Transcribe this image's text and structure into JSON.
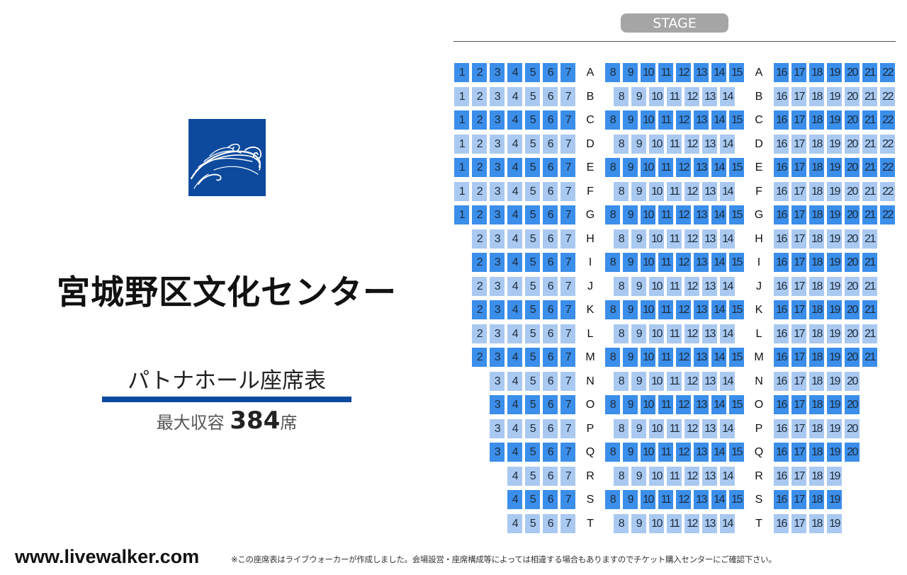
{
  "venue_name": "宮城野区文化センター",
  "hall_title": "パトナホール座席表",
  "capacity": {
    "label": "最大収容",
    "value": "384",
    "unit": "席"
  },
  "stage_label": "STAGE",
  "site_url": "www.livewalker.com",
  "footnote": "※この座席表はライブウォーカーが作成しました。会場設営・座席構成等によっては相違する場合もありますのでチケット購入センターにご確認下さい。",
  "colors": {
    "brand_blue": "#0d4a9e",
    "seat_dark": "#3b8eea",
    "seat_light": "#aac9f1",
    "stage_badge": "#a5a5a5"
  },
  "logo_icon": "swirl-logo-icon",
  "seating": {
    "rows": [
      {
        "label": "A",
        "left": [
          1,
          2,
          3,
          4,
          5,
          6,
          7
        ],
        "center": [
          8,
          9,
          10,
          11,
          12,
          13,
          14,
          15
        ],
        "right": [
          16,
          17,
          18,
          19,
          20,
          21,
          22
        ]
      },
      {
        "label": "B",
        "left": [
          1,
          2,
          3,
          4,
          5,
          6,
          7
        ],
        "center": [
          8,
          9,
          10,
          11,
          12,
          13,
          14
        ],
        "right": [
          16,
          17,
          18,
          19,
          20,
          21,
          22
        ]
      },
      {
        "label": "C",
        "left": [
          1,
          2,
          3,
          4,
          5,
          6,
          7
        ],
        "center": [
          8,
          9,
          10,
          11,
          12,
          13,
          14,
          15
        ],
        "right": [
          16,
          17,
          18,
          19,
          20,
          21,
          22
        ]
      },
      {
        "label": "D",
        "left": [
          1,
          2,
          3,
          4,
          5,
          6,
          7
        ],
        "center": [
          8,
          9,
          10,
          11,
          12,
          13,
          14
        ],
        "right": [
          16,
          17,
          18,
          19,
          20,
          21,
          22
        ]
      },
      {
        "label": "E",
        "left": [
          1,
          2,
          3,
          4,
          5,
          6,
          7
        ],
        "center": [
          8,
          9,
          10,
          11,
          12,
          13,
          14,
          15
        ],
        "right": [
          16,
          17,
          18,
          19,
          20,
          21,
          22
        ]
      },
      {
        "label": "F",
        "left": [
          1,
          2,
          3,
          4,
          5,
          6,
          7
        ],
        "center": [
          8,
          9,
          10,
          11,
          12,
          13,
          14
        ],
        "right": [
          16,
          17,
          18,
          19,
          20,
          21,
          22
        ]
      },
      {
        "label": "G",
        "left": [
          1,
          2,
          3,
          4,
          5,
          6,
          7
        ],
        "center": [
          8,
          9,
          10,
          11,
          12,
          13,
          14,
          15
        ],
        "right": [
          16,
          17,
          18,
          19,
          20,
          21,
          22
        ]
      },
      {
        "label": "H",
        "left": [
          2,
          3,
          4,
          5,
          6,
          7
        ],
        "center": [
          8,
          9,
          10,
          11,
          12,
          13,
          14
        ],
        "right": [
          16,
          17,
          18,
          19,
          20,
          21
        ]
      },
      {
        "label": "I",
        "left": [
          2,
          3,
          4,
          5,
          6,
          7
        ],
        "center": [
          8,
          9,
          10,
          11,
          12,
          13,
          14,
          15
        ],
        "right": [
          16,
          17,
          18,
          19,
          20,
          21
        ]
      },
      {
        "label": "J",
        "left": [
          2,
          3,
          4,
          5,
          6,
          7
        ],
        "center": [
          8,
          9,
          10,
          11,
          12,
          13,
          14
        ],
        "right": [
          16,
          17,
          18,
          19,
          20,
          21
        ]
      },
      {
        "label": "K",
        "left": [
          2,
          3,
          4,
          5,
          6,
          7
        ],
        "center": [
          8,
          9,
          10,
          11,
          12,
          13,
          14,
          15
        ],
        "right": [
          16,
          17,
          18,
          19,
          20,
          21
        ]
      },
      {
        "label": "L",
        "left": [
          2,
          3,
          4,
          5,
          6,
          7
        ],
        "center": [
          8,
          9,
          10,
          11,
          12,
          13,
          14
        ],
        "right": [
          16,
          17,
          18,
          19,
          20,
          21
        ]
      },
      {
        "label": "M",
        "left": [
          2,
          3,
          4,
          5,
          6,
          7
        ],
        "center": [
          8,
          9,
          10,
          11,
          12,
          13,
          14,
          15
        ],
        "right": [
          16,
          17,
          18,
          19,
          20,
          21
        ]
      },
      {
        "label": "N",
        "left": [
          3,
          4,
          5,
          6,
          7
        ],
        "center": [
          8,
          9,
          10,
          11,
          12,
          13,
          14
        ],
        "right": [
          16,
          17,
          18,
          19,
          20
        ]
      },
      {
        "label": "O",
        "left": [
          3,
          4,
          5,
          6,
          7
        ],
        "center": [
          8,
          9,
          10,
          11,
          12,
          13,
          14,
          15
        ],
        "right": [
          16,
          17,
          18,
          19,
          20
        ]
      },
      {
        "label": "P",
        "left": [
          3,
          4,
          5,
          6,
          7
        ],
        "center": [
          8,
          9,
          10,
          11,
          12,
          13,
          14
        ],
        "right": [
          16,
          17,
          18,
          19,
          20
        ]
      },
      {
        "label": "Q",
        "left": [
          3,
          4,
          5,
          6,
          7
        ],
        "center": [
          8,
          9,
          10,
          11,
          12,
          13,
          14,
          15
        ],
        "right": [
          16,
          17,
          18,
          19,
          20
        ]
      },
      {
        "label": "R",
        "left": [
          4,
          5,
          6,
          7
        ],
        "center": [
          8,
          9,
          10,
          11,
          12,
          13,
          14
        ],
        "right": [
          16,
          17,
          18,
          19
        ]
      },
      {
        "label": "S",
        "left": [
          4,
          5,
          6,
          7
        ],
        "center": [
          8,
          9,
          10,
          11,
          12,
          13,
          14,
          15
        ],
        "right": [
          16,
          17,
          18,
          19
        ]
      },
      {
        "label": "T",
        "left": [
          4,
          5,
          6,
          7
        ],
        "center": [
          8,
          9,
          10,
          11,
          12,
          13,
          14
        ],
        "right": [
          16,
          17,
          18,
          19
        ]
      }
    ]
  }
}
